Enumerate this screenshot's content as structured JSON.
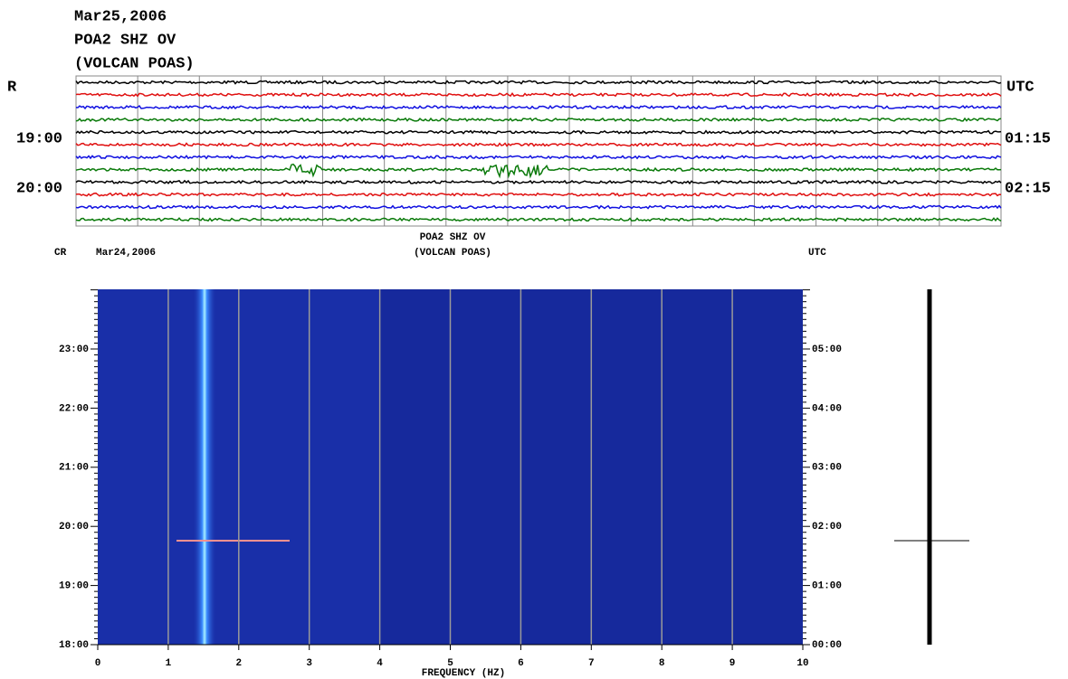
{
  "helicorder": {
    "date": "Mar25,2006",
    "station": "POA2 SHZ OV",
    "site": "(VOLCAN POAS)",
    "left_label": "R",
    "right_label": "UTC",
    "left_times": [
      "19:00",
      "20:00"
    ],
    "right_times": [
      "01:15",
      "02:15"
    ],
    "trace_colors": [
      "#000000",
      "#e01010",
      "#1010e0",
      "#0a7a0a"
    ]
  },
  "spectrogram": {
    "left_corner": "CR",
    "date": "Mar24,2006",
    "station": "POA2 SHZ OV",
    "site": "(VOLCAN POAS)",
    "right_label": "UTC",
    "xlabel": "FREQUENCY (HZ)",
    "xlim": [
      0,
      10
    ],
    "xticks": [
      0,
      1,
      2,
      3,
      4,
      5,
      6,
      7,
      8,
      9,
      10
    ],
    "left_yticks": [
      "18:00",
      "19:00",
      "20:00",
      "21:00",
      "22:00",
      "23:00"
    ],
    "right_yticks": [
      "00:00",
      "01:00",
      "02:00",
      "03:00",
      "04:00",
      "05:00"
    ]
  }
}
